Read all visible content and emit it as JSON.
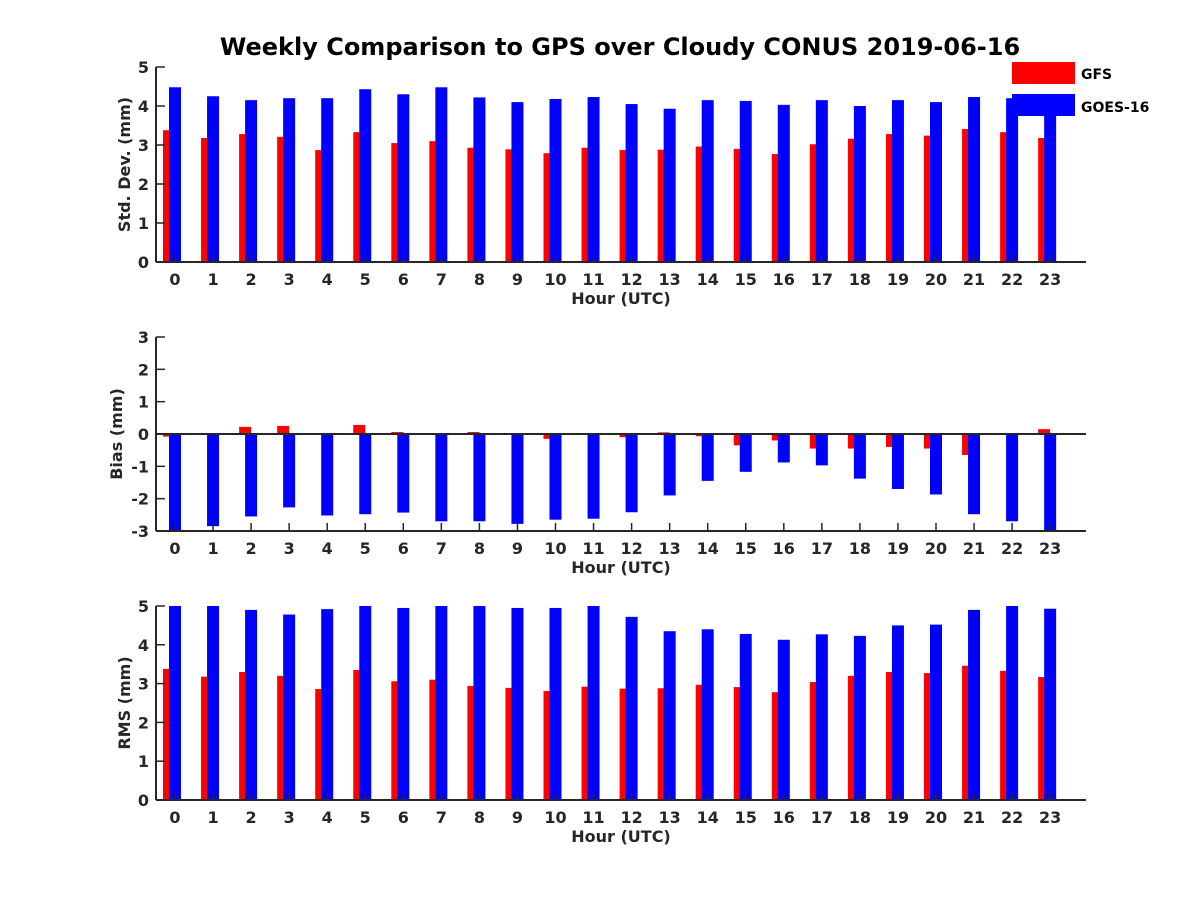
{
  "figure": {
    "title": "Weekly Comparison to GPS over Cloudy CONUS 2019-06-16"
  },
  "legend": {
    "placement": "top-right",
    "entries": [
      {
        "name": "GFS",
        "color": "#ff0000"
      },
      {
        "name": "GOES-16",
        "color": "#0000ff"
      }
    ]
  },
  "chart_data": [
    {
      "type": "bar",
      "title": "Weekly Comparison to GPS over Cloudy CONUS 2019-06-16",
      "xlabel": "Hour (UTC)",
      "ylabel": "Std. Dev. (mm)",
      "ylim": [
        0,
        5
      ],
      "yticks": [
        0,
        1,
        2,
        3,
        4,
        5
      ],
      "grid": false,
      "categories": [
        "0",
        "1",
        "2",
        "3",
        "4",
        "5",
        "6",
        "7",
        "8",
        "9",
        "10",
        "11",
        "12",
        "13",
        "14",
        "15",
        "16",
        "17",
        "18",
        "19",
        "20",
        "21",
        "22",
        "23"
      ],
      "series": [
        {
          "name": "GFS",
          "color": "#ff0000",
          "values": [
            3.38,
            3.18,
            3.28,
            3.21,
            2.87,
            3.33,
            3.05,
            3.1,
            2.93,
            2.89,
            2.79,
            2.93,
            2.87,
            2.88,
            2.96,
            2.9,
            2.77,
            3.02,
            3.16,
            3.28,
            3.24,
            3.41,
            3.33,
            3.18
          ]
        },
        {
          "name": "GOES-16",
          "color": "#0000ff",
          "values": [
            4.48,
            4.25,
            4.15,
            4.2,
            4.2,
            4.43,
            4.3,
            4.48,
            4.22,
            4.1,
            4.18,
            4.23,
            4.05,
            3.93,
            4.15,
            4.13,
            4.03,
            4.15,
            4.0,
            4.15,
            4.1,
            4.23,
            4.2,
            4.05
          ]
        }
      ]
    },
    {
      "type": "bar",
      "xlabel": "Hour (UTC)",
      "ylabel": "Bias (mm)",
      "ylim": [
        -3,
        3
      ],
      "yticks": [
        -3,
        -2,
        -1,
        0,
        1,
        2,
        3
      ],
      "grid": false,
      "categories": [
        "0",
        "1",
        "2",
        "3",
        "4",
        "5",
        "6",
        "7",
        "8",
        "9",
        "10",
        "11",
        "12",
        "13",
        "14",
        "15",
        "16",
        "17",
        "18",
        "19",
        "20",
        "21",
        "22",
        "23"
      ],
      "series": [
        {
          "name": "GFS",
          "color": "#ff0000",
          "values": [
            -0.08,
            0.02,
            0.22,
            0.25,
            -0.03,
            0.28,
            0.06,
            -0.02,
            0.06,
            -0.02,
            -0.15,
            -0.03,
            -0.1,
            0.05,
            -0.07,
            -0.35,
            -0.2,
            -0.45,
            -0.45,
            -0.4,
            -0.45,
            -0.65,
            -0.03,
            0.15
          ]
        },
        {
          "name": "GOES-16",
          "color": "#0000ff",
          "values": [
            -3.0,
            -2.85,
            -2.55,
            -2.27,
            -2.52,
            -2.48,
            -2.43,
            -2.7,
            -2.7,
            -2.78,
            -2.65,
            -2.62,
            -2.42,
            -1.9,
            -1.45,
            -1.17,
            -0.88,
            -0.97,
            -1.38,
            -1.7,
            -1.87,
            -2.48,
            -2.7,
            -3.0
          ]
        }
      ]
    },
    {
      "type": "bar",
      "xlabel": "Hour (UTC)",
      "ylabel": "RMS (mm)",
      "ylim": [
        0,
        5
      ],
      "yticks": [
        0,
        1,
        2,
        3,
        4,
        5
      ],
      "grid": false,
      "categories": [
        "0",
        "1",
        "2",
        "3",
        "4",
        "5",
        "6",
        "7",
        "8",
        "9",
        "10",
        "11",
        "12",
        "13",
        "14",
        "15",
        "16",
        "17",
        "18",
        "19",
        "20",
        "21",
        "22",
        "23"
      ],
      "series": [
        {
          "name": "GFS",
          "color": "#ff0000",
          "values": [
            3.38,
            3.18,
            3.3,
            3.2,
            2.86,
            3.35,
            3.06,
            3.1,
            2.94,
            2.89,
            2.81,
            2.92,
            2.87,
            2.88,
            2.97,
            2.91,
            2.78,
            3.04,
            3.2,
            3.3,
            3.27,
            3.46,
            3.33,
            3.17
          ]
        },
        {
          "name": "GOES-16",
          "color": "#0000ff",
          "values": [
            5.0,
            5.0,
            4.9,
            4.78,
            4.92,
            5.0,
            4.95,
            5.0,
            5.0,
            4.95,
            4.95,
            5.0,
            4.72,
            4.35,
            4.4,
            4.28,
            4.13,
            4.27,
            4.23,
            4.5,
            4.52,
            4.9,
            5.0,
            4.93
          ]
        }
      ]
    }
  ]
}
